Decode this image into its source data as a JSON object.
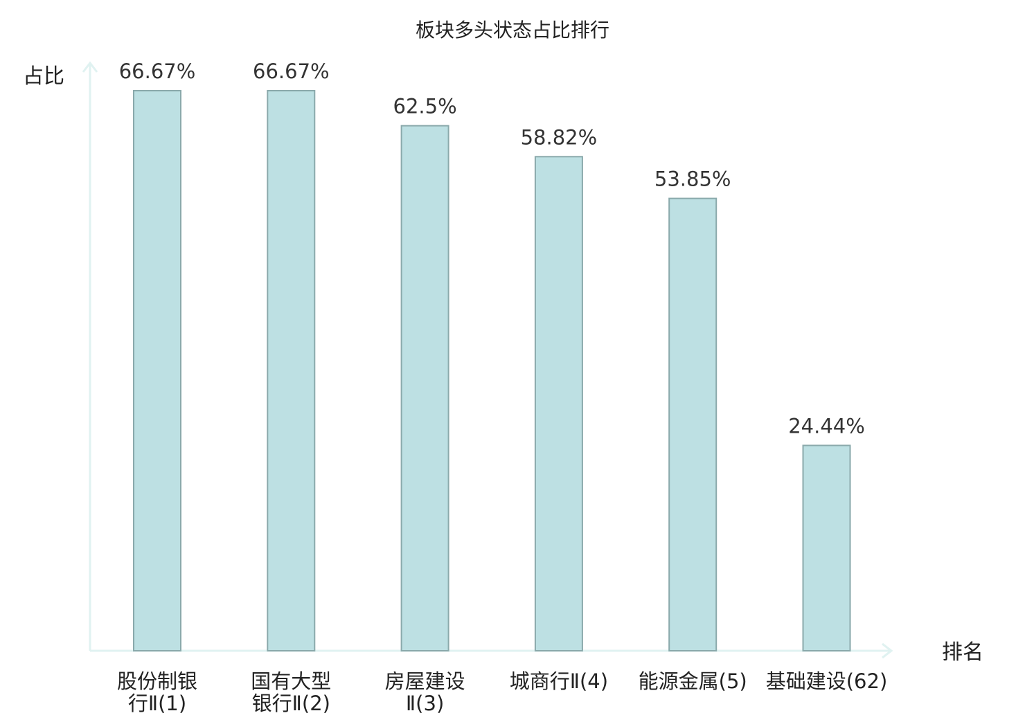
{
  "chart_data": {
    "type": "bar",
    "title": "板块多头状态占比排行",
    "ylabel": "占比",
    "xlabel": "排名",
    "ylim": [
      0,
      70
    ],
    "grid": false,
    "categories": [
      [
        "股份制银",
        "行Ⅱ(1)"
      ],
      [
        "国有大型",
        "银行Ⅱ(2)"
      ],
      [
        "房屋建设",
        "Ⅱ(3)"
      ],
      [
        "城商行Ⅱ(4)"
      ],
      [
        "能源金属(5)"
      ],
      [
        "基础建设(62)"
      ]
    ],
    "values": [
      66.67,
      66.67,
      62.5,
      58.82,
      53.85,
      24.44
    ],
    "value_labels": [
      "66.67%",
      "66.67%",
      "62.5%",
      "58.82%",
      "53.85%",
      "24.44%"
    ],
    "highlight_index": 5,
    "colors": {
      "bar_fill": "#bde0e3",
      "bar_stroke": "#8aa9ab",
      "axis": "#e0f2f1",
      "highlight_text": "#e0201b",
      "text": "#222222"
    }
  }
}
